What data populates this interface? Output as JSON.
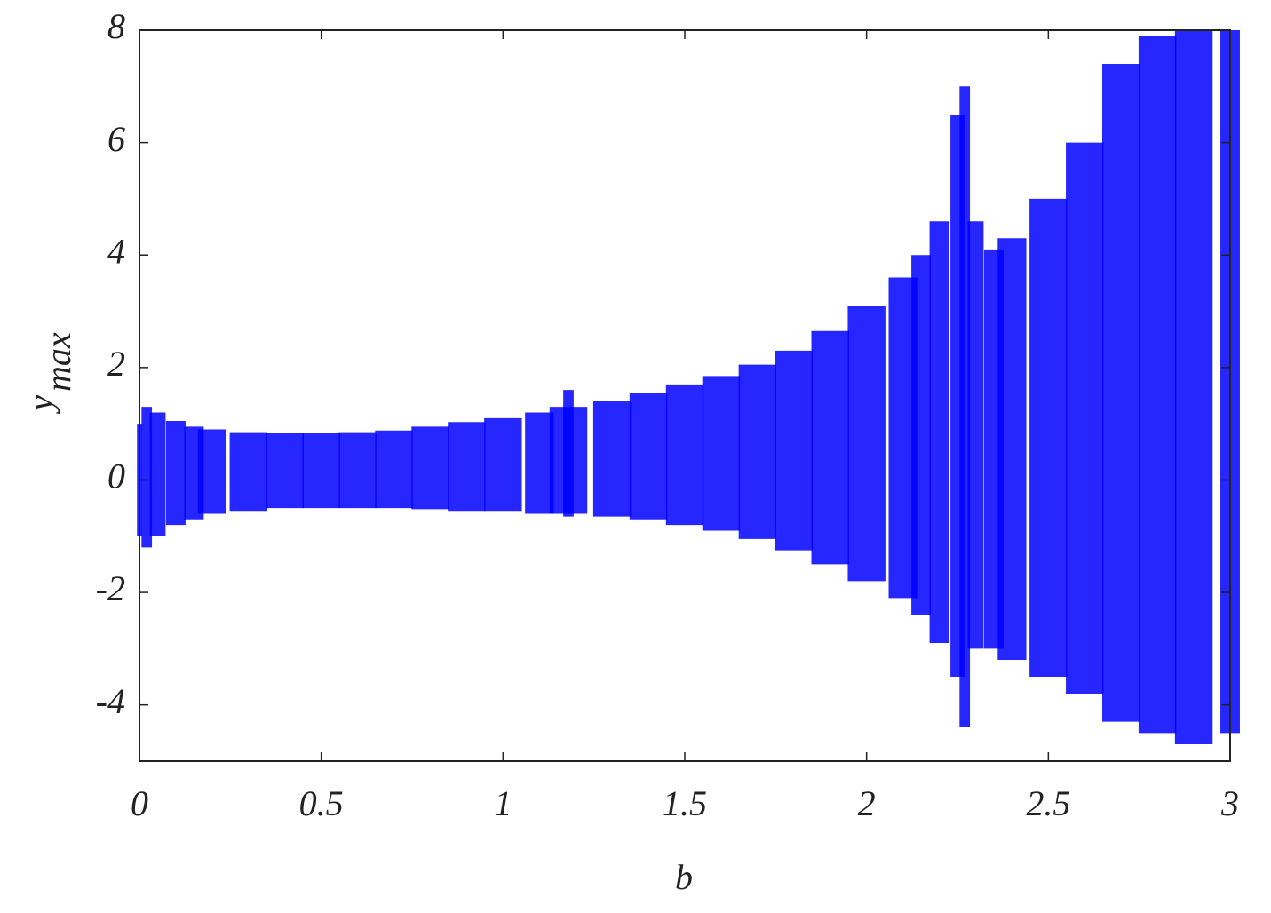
{
  "chart_data": {
    "type": "range",
    "xlabel": "b",
    "ylabel": "y",
    "ylabel_sub": "max",
    "x": [
      0,
      0.02,
      0.05,
      0.1,
      0.15,
      0.2,
      0.3,
      0.4,
      0.5,
      0.6,
      0.7,
      0.8,
      0.9,
      1.0,
      1.1,
      1.15,
      1.18,
      1.2,
      1.3,
      1.4,
      1.5,
      1.6,
      1.7,
      1.8,
      1.9,
      2.0,
      2.1,
      2.15,
      2.2,
      2.25,
      2.27,
      2.3,
      2.35,
      2.4,
      2.5,
      2.6,
      2.7,
      2.8,
      2.9,
      3.0
    ],
    "y_high": [
      1.0,
      1.3,
      1.2,
      1.05,
      0.95,
      0.9,
      0.85,
      0.83,
      0.83,
      0.85,
      0.88,
      0.95,
      1.03,
      1.1,
      1.2,
      1.3,
      1.6,
      1.3,
      1.4,
      1.55,
      1.7,
      1.85,
      2.05,
      2.3,
      2.65,
      3.1,
      3.6,
      4.0,
      4.6,
      6.5,
      7.0,
      4.6,
      4.1,
      4.3,
      5.0,
      6.0,
      7.4,
      7.9,
      8.0,
      8.0
    ],
    "y_low": [
      -1.0,
      -1.2,
      -1.0,
      -0.8,
      -0.7,
      -0.6,
      -0.55,
      -0.5,
      -0.5,
      -0.5,
      -0.5,
      -0.52,
      -0.55,
      -0.55,
      -0.6,
      -0.6,
      -0.65,
      -0.6,
      -0.65,
      -0.7,
      -0.8,
      -0.9,
      -1.05,
      -1.25,
      -1.5,
      -1.8,
      -2.1,
      -2.4,
      -2.9,
      -3.5,
      -4.4,
      -3.0,
      -3.0,
      -3.2,
      -3.5,
      -3.8,
      -4.3,
      -4.5,
      -4.7,
      -4.5
    ],
    "color": "#0000ff",
    "xlim": [
      0,
      3
    ],
    "xticks": [
      0,
      0.5,
      1,
      1.5,
      2,
      2.5,
      3
    ],
    "ylim": [
      -5,
      8
    ],
    "yticks": [
      -4,
      -2,
      0,
      2,
      4,
      6,
      8
    ]
  }
}
